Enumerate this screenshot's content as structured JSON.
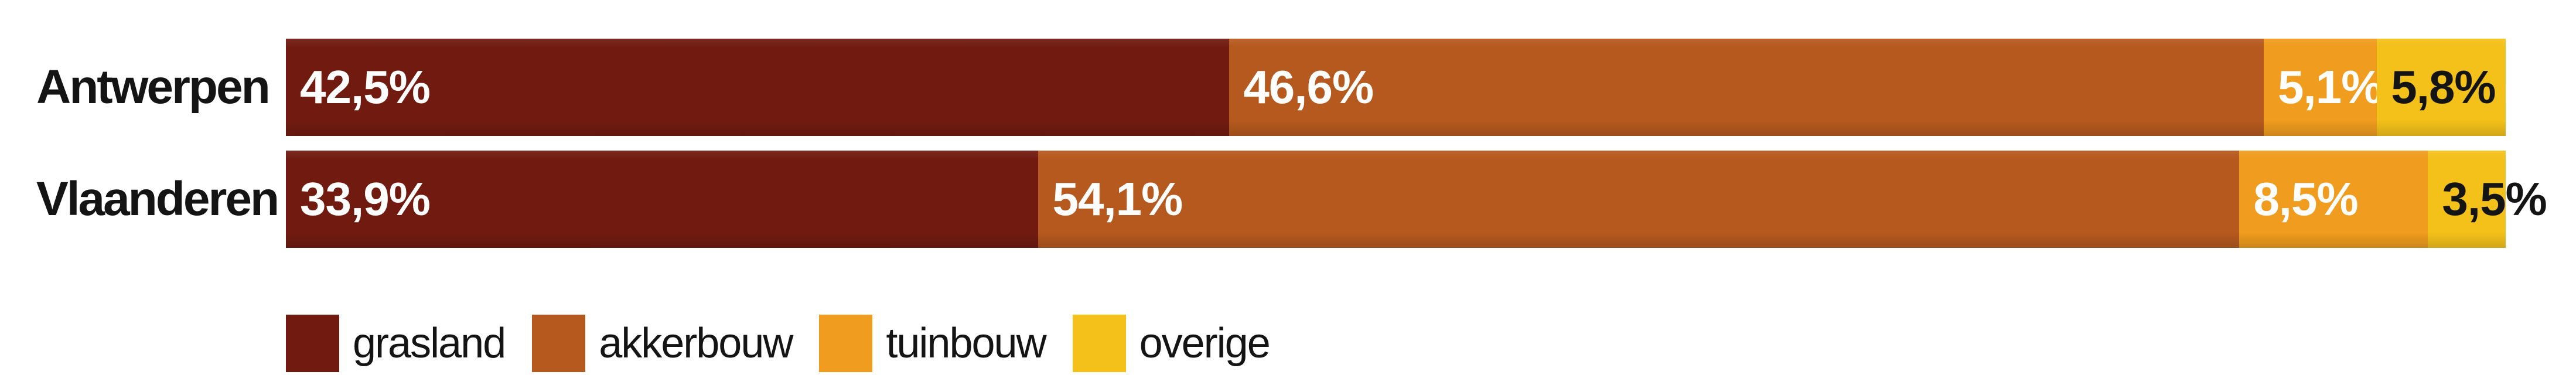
{
  "page": {
    "background": "#ffffff"
  },
  "chart_data": {
    "type": "bar",
    "orientation": "horizontal-stacked-100pct",
    "title": "",
    "xlabel": "",
    "ylabel": "",
    "unit": "%",
    "decimal_separator": ",",
    "xlim": [
      0,
      100
    ],
    "grid": false,
    "legend_position": "bottom",
    "categories": [
      "Antwerpen",
      "Vlaanderen"
    ],
    "series": [
      {
        "name": "grasland",
        "color": "#711B10",
        "label_color": "#FFFFFF",
        "values": [
          42.5,
          33.9
        ],
        "labels": [
          "42,5%",
          "33,9%"
        ]
      },
      {
        "name": "akkerbouw",
        "color": "#B5591E",
        "label_color": "#FFFFFF",
        "values": [
          46.6,
          54.1
        ],
        "labels": [
          "46,6%",
          "54,1%"
        ]
      },
      {
        "name": "tuinbouw",
        "color": "#F09C1E",
        "label_color": "#FFFFFF",
        "values": [
          5.1,
          8.5
        ],
        "labels": [
          "5,1%",
          "8,5%"
        ]
      },
      {
        "name": "overige",
        "color": "#F4C11A",
        "label_color": "#141414",
        "values": [
          5.8,
          3.5
        ],
        "labels": [
          "5,8%",
          "3,5%"
        ]
      }
    ]
  }
}
